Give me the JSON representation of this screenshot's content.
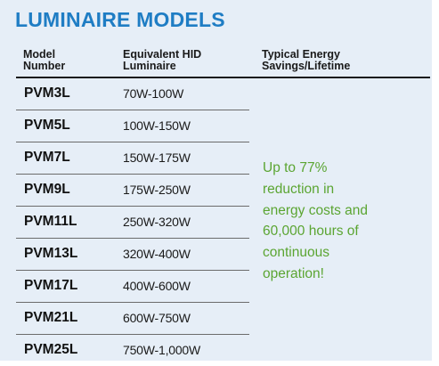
{
  "title": "LUMINAIRE MODELS",
  "headers": {
    "model": [
      "Model",
      "Number"
    ],
    "equivalent": [
      "Equivalent HID",
      "Luminaire"
    ],
    "savings": [
      "Typical Energy",
      "Savings/Lifetime"
    ]
  },
  "rows": [
    {
      "model": "PVM3L",
      "range": "70W-100W"
    },
    {
      "model": "PVM5L",
      "range": "100W-150W"
    },
    {
      "model": "PVM7L",
      "range": "150W-175W"
    },
    {
      "model": "PVM9L",
      "range": "175W-250W"
    },
    {
      "model": "PVM11L",
      "range": "250W-320W"
    },
    {
      "model": "PVM13L",
      "range": "320W-400W"
    },
    {
      "model": "PVM17L",
      "range": "400W-600W"
    },
    {
      "model": "PVM21L",
      "range": "600W-750W"
    },
    {
      "model": "PVM25L",
      "range": "750W-1,000W"
    }
  ],
  "savings_text": [
    "Up to 77%",
    "reduction in",
    "energy costs and",
    "60,000 hours of",
    "continuous",
    "operation!"
  ],
  "colors": {
    "title": "#1f7dc4",
    "savings": "#5ba532",
    "background": "#e6eef7"
  }
}
